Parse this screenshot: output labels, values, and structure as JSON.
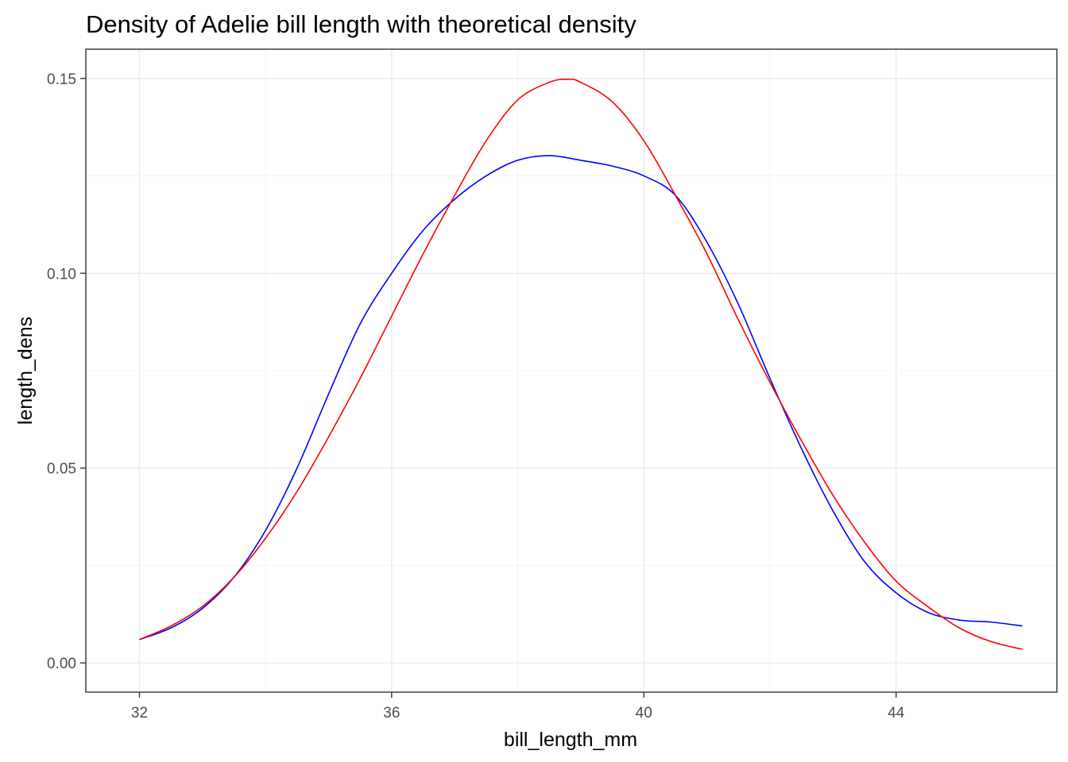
{
  "chart_data": {
    "type": "line",
    "title": "Density of Adelie bill length with theoretical density",
    "xlabel": "bill_length_mm",
    "ylabel": "length_dens",
    "xlim": [
      31.15,
      46.55
    ],
    "ylim": [
      -0.0075,
      0.1575
    ],
    "x_ticks": [
      32,
      36,
      40,
      44
    ],
    "x_tick_labels": [
      "32",
      "36",
      "40",
      "44"
    ],
    "y_ticks": [
      0.0,
      0.05,
      0.1,
      0.15
    ],
    "y_tick_labels": [
      "0.00",
      "0.05",
      "0.10",
      "0.15"
    ],
    "grid": true,
    "legend": "none",
    "series": [
      {
        "color": "#0000ff",
        "x": [
          32.0,
          32.5,
          33.0,
          33.5,
          34.0,
          34.5,
          35.0,
          35.5,
          36.0,
          36.5,
          37.0,
          37.5,
          38.0,
          38.5,
          39.0,
          39.5,
          40.0,
          40.5,
          41.0,
          41.5,
          42.0,
          42.5,
          43.0,
          43.5,
          44.0,
          44.5,
          45.0,
          45.5,
          46.0
        ],
        "values": [
          0.006,
          0.009,
          0.014,
          0.022,
          0.034,
          0.05,
          0.069,
          0.087,
          0.1,
          0.111,
          0.119,
          0.125,
          0.129,
          0.1302,
          0.129,
          0.1275,
          0.125,
          0.12,
          0.108,
          0.092,
          0.073,
          0.055,
          0.039,
          0.026,
          0.018,
          0.013,
          0.011,
          0.0105,
          0.0095
        ]
      },
      {
        "color": "#ff0000",
        "x": [
          32.0,
          32.5,
          33.0,
          33.5,
          34.0,
          34.5,
          35.0,
          35.5,
          36.0,
          36.5,
          37.0,
          37.5,
          38.0,
          38.5,
          38.8,
          39.0,
          39.5,
          40.0,
          40.5,
          41.0,
          41.5,
          42.0,
          42.5,
          43.0,
          43.5,
          44.0,
          44.5,
          45.0,
          45.5,
          46.0
        ],
        "values": [
          0.006,
          0.0095,
          0.0145,
          0.022,
          0.032,
          0.044,
          0.058,
          0.073,
          0.089,
          0.105,
          0.12,
          0.134,
          0.1445,
          0.149,
          0.1498,
          0.149,
          0.144,
          0.134,
          0.12,
          0.105,
          0.088,
          0.072,
          0.057,
          0.043,
          0.031,
          0.021,
          0.0145,
          0.009,
          0.0055,
          0.0035
        ]
      }
    ]
  }
}
